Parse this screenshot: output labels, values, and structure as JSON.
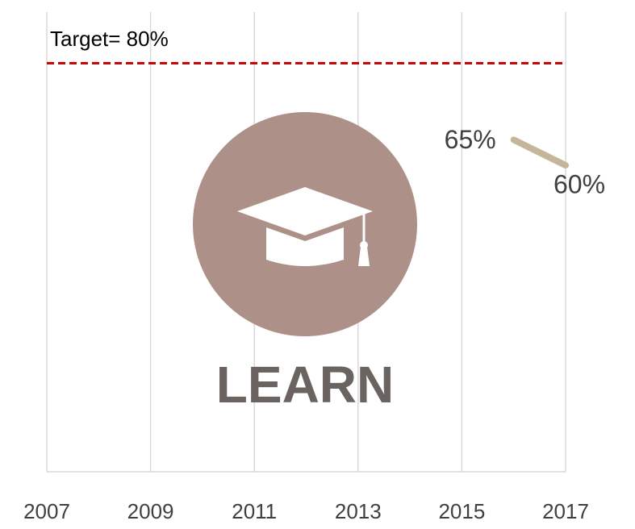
{
  "chart_data": {
    "type": "line",
    "x": [
      2016,
      2017
    ],
    "series": [
      {
        "color": "#c4b59b",
        "values": [
          65,
          60
        ],
        "value_labels": [
          "65%",
          "60%"
        ]
      }
    ],
    "xlim": [
      2007,
      2017
    ],
    "xticks": [
      2007,
      2009,
      2011,
      2013,
      2015,
      2017
    ],
    "ylim": [
      0,
      90
    ],
    "grid": true,
    "target": {
      "value": 80,
      "label": "Target= 80%",
      "color": "#c00000"
    },
    "icon_label": "LEARN"
  }
}
